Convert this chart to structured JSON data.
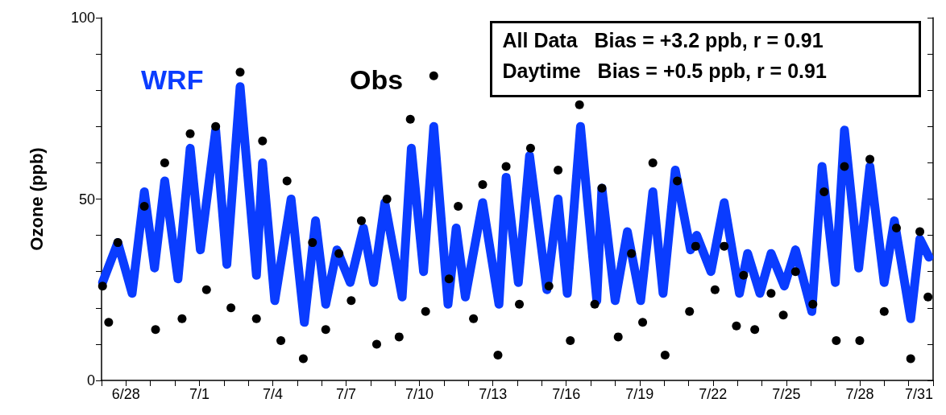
{
  "chart_data": {
    "type": "line",
    "ylabel": "Ozone (ppb)",
    "xlim": [
      "--06-27",
      "--07-31"
    ],
    "xticks": [
      {
        "value": "--06-27",
        "label": null
      },
      {
        "value": "--06-28",
        "label": "6/28"
      },
      {
        "value": "--06-29",
        "label": null
      },
      {
        "value": "--06-30",
        "label": null
      },
      {
        "value": "--07-01",
        "label": "7/1"
      },
      {
        "value": "--07-02",
        "label": null
      },
      {
        "value": "--07-03",
        "label": null
      },
      {
        "value": "--07-04",
        "label": "7/4"
      },
      {
        "value": "--07-05",
        "label": null
      },
      {
        "value": "--07-06",
        "label": null
      },
      {
        "value": "--07-07",
        "label": "7/7"
      },
      {
        "value": "--07-08",
        "label": null
      },
      {
        "value": "--07-09",
        "label": null
      },
      {
        "value": "--07-10",
        "label": "7/10"
      },
      {
        "value": "--07-11",
        "label": null
      },
      {
        "value": "--07-12",
        "label": null
      },
      {
        "value": "--07-13",
        "label": "7/13"
      },
      {
        "value": "--07-14",
        "label": null
      },
      {
        "value": "--07-15",
        "label": null
      },
      {
        "value": "--07-16",
        "label": "7/16"
      },
      {
        "value": "--07-17",
        "label": null
      },
      {
        "value": "--07-18",
        "label": null
      },
      {
        "value": "--07-19",
        "label": "7/19"
      },
      {
        "value": "--07-20",
        "label": null
      },
      {
        "value": "--07-21",
        "label": null
      },
      {
        "value": "--07-22",
        "label": "7/22"
      },
      {
        "value": "--07-23",
        "label": null
      },
      {
        "value": "--07-24",
        "label": null
      },
      {
        "value": "--07-25",
        "label": "7/25"
      },
      {
        "value": "--07-26",
        "label": null
      },
      {
        "value": "--07-27",
        "label": null
      },
      {
        "value": "--07-28",
        "label": "7/28"
      },
      {
        "value": "--07-29",
        "label": null
      },
      {
        "value": "--07-30",
        "label": null
      },
      {
        "value": "--07-31",
        "label": "7/31"
      }
    ],
    "ylim": [
      0,
      100
    ],
    "yticks": [
      0,
      {
        "value": 10,
        "label": null
      },
      {
        "value": 20,
        "label": null
      },
      {
        "value": 30,
        "label": null
      },
      {
        "value": 40,
        "label": null
      },
      50,
      {
        "value": 60,
        "label": null
      },
      {
        "value": 70,
        "label": null
      },
      {
        "value": 80,
        "label": null
      },
      {
        "value": 90,
        "label": null
      },
      100
    ],
    "grid": false,
    "legend": false,
    "annotations": [
      "All Data   Bias = +3.2 ppb, r = 0.91",
      "Daytime   Bias = +0.5 ppb, r = 0.91"
    ],
    "series": [
      {
        "name": "WRF",
        "color": "#0a3cff",
        "marker": "none",
        "line_style": "solid",
        "x": [
          "--06-27T01:00",
          "--06-27T16:00",
          "--06-28T06:00",
          "--06-28T18:00",
          "--06-29T04:00",
          "--06-29T14:00",
          "--06-30T03:00",
          "--06-30T15:00",
          "--07-01T01:00",
          "--07-01T16:00",
          "--07-02T03:00",
          "--07-02T16:00",
          "--07-03T08:00",
          "--07-03T14:00",
          "--07-04T02:00",
          "--07-04T18:00",
          "--07-05T07:00",
          "--07-05T18:00",
          "--07-06T04:00",
          "--07-06T15:00",
          "--07-07T04:00",
          "--07-07T17:00",
          "--07-08T03:00",
          "--07-08T14:00",
          "--07-09T07:00",
          "--07-09T16:00",
          "--07-10T04:00",
          "--07-10T14:00",
          "--07-11T04:00",
          "--07-11T12:00",
          "--07-11T21:00",
          "--07-12T14:00",
          "--07-13T06:00",
          "--07-13T13:00",
          "--07-14T01:00",
          "--07-14T12:00",
          "--07-15T05:00",
          "--07-15T16:00",
          "--07-16T01:00",
          "--07-16T14:00",
          "--07-17T06:00",
          "--07-17T11:00",
          "--07-18T00:00",
          "--07-18T12:00",
          "--07-19T01:00",
          "--07-19T13:00",
          "--07-19T23:00",
          "--07-20T11:00",
          "--07-21T02:00",
          "--07-21T08:00",
          "--07-21T22:00",
          "--07-22T11:00",
          "--07-23T02:00",
          "--07-23T10:00",
          "--07-23T22:00",
          "--07-24T09:00",
          "--07-24T22:00",
          "--07-25T09:00",
          "--07-26T01:00",
          "--07-26T11:00",
          "--07-27T00:00",
          "--07-27T09:00",
          "--07-27T23:00",
          "--07-28T10:00",
          "--07-29T00:00",
          "--07-29T10:00",
          "--07-30T02:00",
          "--07-30T11:00",
          "--07-30T20:00"
        ],
        "values": [
          27,
          38,
          24,
          52,
          31,
          55,
          28,
          64,
          36,
          69,
          32,
          81,
          29,
          60,
          22,
          50,
          16,
          44,
          21,
          36,
          27,
          42,
          27,
          49,
          23,
          64,
          30,
          70,
          21,
          42,
          23,
          49,
          21,
          56,
          27,
          62,
          25,
          50,
          24,
          70,
          22,
          53,
          22,
          41,
          22,
          52,
          24,
          58,
          36,
          40,
          30,
          49,
          24,
          35,
          24,
          35,
          26,
          36,
          19,
          59,
          27,
          69,
          31,
          59,
          27,
          44,
          17,
          39,
          34
        ]
      },
      {
        "name": "Obs",
        "type": "scatter",
        "color": "#000000",
        "marker": "circle",
        "x": [
          "--06-27T01:00",
          "--06-27T07:00",
          "--06-27T16:00",
          "--06-28T18:00",
          "--06-29T05:00",
          "--06-29T14:00",
          "--06-30T07:00",
          "--06-30T15:00",
          "--07-01T07:00",
          "--07-01T16:00",
          "--07-02T07:00",
          "--07-02T16:00",
          "--07-03T08:00",
          "--07-03T14:00",
          "--07-04T08:00",
          "--07-04T14:00",
          "--07-05T06:00",
          "--07-05T15:00",
          "--07-06T04:00",
          "--07-06T17:00",
          "--07-07T05:00",
          "--07-07T15:00",
          "--07-08T06:00",
          "--07-08T16:00",
          "--07-09T04:00",
          "--07-09T15:00",
          "--07-10T06:00",
          "--07-10T14:00",
          "--07-11T05:00",
          "--07-11T14:00",
          "--07-12T05:00",
          "--07-12T14:00",
          "--07-13T05:00",
          "--07-13T13:00",
          "--07-14T02:00",
          "--07-14T13:00",
          "--07-15T07:00",
          "--07-15T16:00",
          "--07-16T04:00",
          "--07-16T13:00",
          "--07-17T04:00",
          "--07-17T11:00",
          "--07-18T03:00",
          "--07-18T16:00",
          "--07-19T03:00",
          "--07-19T13:00",
          "--07-20T01:00",
          "--07-20T13:00",
          "--07-21T01:00",
          "--07-21T07:00",
          "--07-22T02:00",
          "--07-22T11:00",
          "--07-22T23:00",
          "--07-23T06:00",
          "--07-23T17:00",
          "--07-24T09:00",
          "--07-24T21:00",
          "--07-25T09:00",
          "--07-26T02:00",
          "--07-26T13:00",
          "--07-27T01:00",
          "--07-27T09:00",
          "--07-28T00:00",
          "--07-28T10:00",
          "--07-29T00:00",
          "--07-29T12:00",
          "--07-30T02:00",
          "--07-30T11:00",
          "--07-30T19:00"
        ],
        "values": [
          26,
          16,
          38,
          48,
          14,
          60,
          17,
          68,
          25,
          70,
          20,
          85,
          17,
          66,
          11,
          55,
          6,
          38,
          14,
          35,
          22,
          44,
          10,
          50,
          12,
          72,
          19,
          84,
          28,
          48,
          17,
          54,
          7,
          59,
          21,
          64,
          26,
          58,
          11,
          76,
          21,
          53,
          12,
          35,
          16,
          60,
          7,
          55,
          19,
          37,
          25,
          37,
          15,
          29,
          14,
          24,
          18,
          30,
          21,
          52,
          11,
          59,
          11,
          61,
          19,
          42,
          6,
          41,
          23
        ]
      }
    ]
  }
}
